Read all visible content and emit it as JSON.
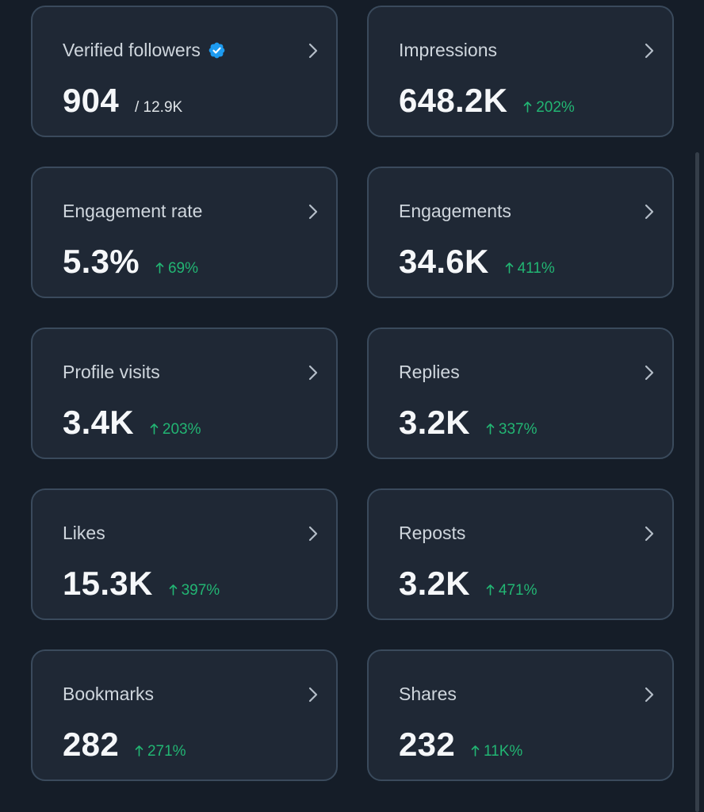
{
  "colors": {
    "background": "#151d28",
    "card": "#1f2835",
    "border": "#3a4a5c",
    "positive": "#22b573",
    "verified": "#1d9bf0"
  },
  "cards": [
    {
      "id": "verified-followers",
      "label": "Verified followers",
      "value": "904",
      "secondary": "/ 12.9K",
      "icon": "verified-badge-icon"
    },
    {
      "id": "impressions",
      "label": "Impressions",
      "value": "648.2K",
      "change": "202%"
    },
    {
      "id": "engagement-rate",
      "label": "Engagement rate",
      "value": "5.3%",
      "change": "69%"
    },
    {
      "id": "engagements",
      "label": "Engagements",
      "value": "34.6K",
      "change": "411%"
    },
    {
      "id": "profile-visits",
      "label": "Profile visits",
      "value": "3.4K",
      "change": "203%"
    },
    {
      "id": "replies",
      "label": "Replies",
      "value": "3.2K",
      "change": "337%"
    },
    {
      "id": "likes",
      "label": "Likes",
      "value": "15.3K",
      "change": "397%"
    },
    {
      "id": "reposts",
      "label": "Reposts",
      "value": "3.2K",
      "change": "471%"
    },
    {
      "id": "bookmarks",
      "label": "Bookmarks",
      "value": "282",
      "change": "271%"
    },
    {
      "id": "shares",
      "label": "Shares",
      "value": "232",
      "change": "11K%"
    }
  ]
}
